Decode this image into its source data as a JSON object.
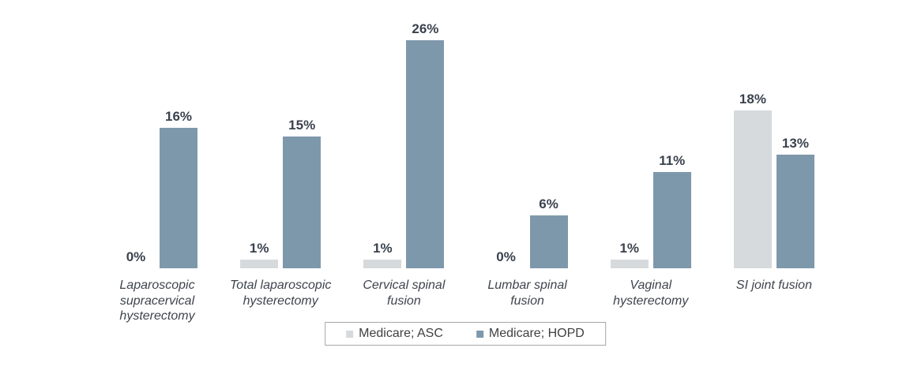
{
  "page": {
    "background_color": "#FFFFFF"
  },
  "chart_data": {
    "type": "bar",
    "title": "",
    "xlabel": "",
    "ylabel": "",
    "ylim": [
      0,
      28
    ],
    "grid": false,
    "axis_lines": false,
    "legend_position": "bottom-center",
    "value_label_color": "#3A424E",
    "category_label_color": "#3E444E",
    "legend_border_color": "#A6A6A6",
    "categories": [
      "Laparoscopic supracervical hysterectomy",
      "Total laparoscopic hysterectomy",
      "Cervical spinal fusion",
      "Lumbar spinal fusion",
      "Vaginal hysterectomy",
      "SI joint fusion"
    ],
    "series": [
      {
        "name": "Medicare; ASC",
        "color": "#D6DADC",
        "values": [
          0,
          1,
          1,
          0,
          1,
          18
        ],
        "labels": [
          "0%",
          "1%",
          "1%",
          "0%",
          "1%",
          "18%"
        ]
      },
      {
        "name": "Medicare; HOPD",
        "color": "#7E98AB",
        "values": [
          16,
          15,
          26,
          6,
          11,
          13
        ],
        "labels": [
          "16%",
          "15%",
          "26%",
          "6%",
          "11%",
          "13%"
        ]
      }
    ]
  }
}
